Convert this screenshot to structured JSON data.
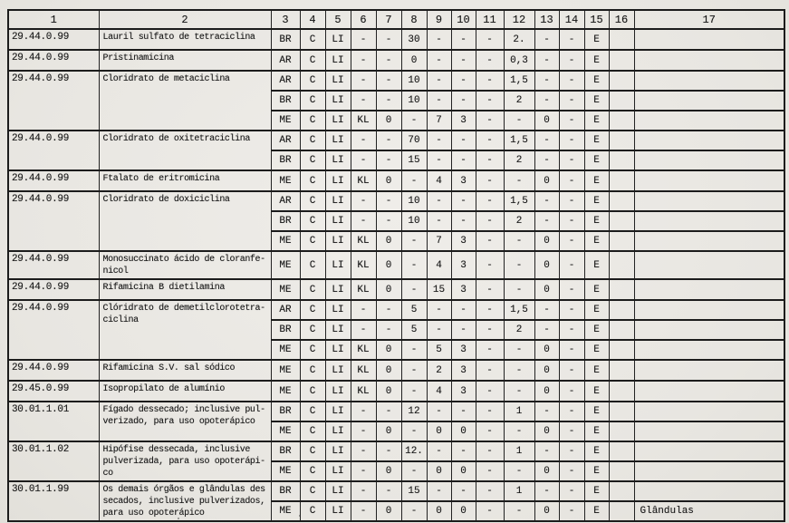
{
  "page": {
    "paper_color": "#efede9",
    "ink_color": "#1a1a1a",
    "line_color": "#1c1c1c"
  },
  "table": {
    "headers": [
      "1",
      "2",
      "3",
      "4",
      "5",
      "6",
      "7",
      "8",
      "9",
      "10",
      "11",
      "12",
      "13",
      "14",
      "15",
      "16",
      "17"
    ],
    "groups": [
      {
        "code": "29.44.0.99",
        "description": "Lauril sulfato de tetraciclina",
        "rows": [
          [
            "BR",
            "C",
            "LI",
            "-",
            "-",
            "30",
            "-",
            "-",
            "-",
            "2.",
            "-",
            "-",
            "E",
            "",
            ""
          ]
        ]
      },
      {
        "code": "29.44.0.99",
        "description": "Pristinamicina",
        "rows": [
          [
            "AR",
            "C",
            "LI",
            "-",
            "-",
            "0",
            "-",
            "-",
            "-",
            "0,3",
            "-",
            "-",
            "E",
            "",
            ""
          ]
        ]
      },
      {
        "code": "29.44.0.99",
        "description": "Cloridrato de metaciclina",
        "rows": [
          [
            "AR",
            "C",
            "LI",
            "-",
            "-",
            "10",
            "-",
            "-",
            "-",
            "1,5",
            "-",
            "-",
            "E",
            "",
            ""
          ],
          [
            "BR",
            "C",
            "LI",
            "-",
            "-",
            "10",
            "-",
            "-",
            "-",
            "2",
            "-",
            "-",
            "E",
            "",
            ""
          ],
          [
            "ME",
            "C",
            "LI",
            "KL",
            "0",
            "-",
            "7",
            "3",
            "-",
            "-",
            "0",
            "-",
            "E",
            "",
            ""
          ]
        ]
      },
      {
        "code": "29.44.0.99",
        "description": "Cloridrato de oxitetraciclina",
        "rows": [
          [
            "AR",
            "C",
            "LI",
            "-",
            "-",
            "70",
            "-",
            "-",
            "-",
            "1,5",
            "-",
            "-",
            "E",
            "",
            ""
          ],
          [
            "BR",
            "C",
            "LI",
            "-",
            "-",
            "15",
            "-",
            "-",
            "-",
            "2",
            "-",
            "-",
            "E",
            "",
            ""
          ]
        ]
      },
      {
        "code": "29.44.0.99",
        "description": "Ftalato de eritromicina",
        "rows": [
          [
            "ME",
            "C",
            "LI",
            "KL",
            "0",
            "-",
            "4",
            "3",
            "-",
            "-",
            "0",
            "-",
            "E",
            "",
            ""
          ]
        ]
      },
      {
        "code": "29.44.0.99",
        "description": "Cloridrato de doxiciclina",
        "rows": [
          [
            "AR",
            "C",
            "LI",
            "-",
            "-",
            "10",
            "-",
            "-",
            "-",
            "1,5",
            "-",
            "-",
            "E",
            "",
            ""
          ],
          [
            "BR",
            "C",
            "LI",
            "-",
            "-",
            "10",
            "-",
            "-",
            "-",
            "2",
            "-",
            "-",
            "E",
            "",
            ""
          ],
          [
            "ME",
            "C",
            "LI",
            "KL",
            "0",
            "-",
            "7",
            "3",
            "-",
            "-",
            "0",
            "-",
            "E",
            "",
            ""
          ]
        ]
      },
      {
        "code": "29.44.0.99",
        "description": "Monosuccinato ácido de cloranfe-\nnicol",
        "rows": [
          [
            "ME",
            "C",
            "LI",
            "KL",
            "0",
            "-",
            "4",
            "3",
            "-",
            "-",
            "0",
            "-",
            "E",
            "",
            ""
          ]
        ]
      },
      {
        "code": "29.44.0.99",
        "description": "Rifamicina B dietilamina",
        "rows": [
          [
            "ME",
            "C",
            "LI",
            "KL",
            "0",
            "-",
            "15",
            "3",
            "-",
            "-",
            "0",
            "-",
            "E",
            "",
            ""
          ]
        ]
      },
      {
        "code": "29.44.0.99",
        "description": "Clóridrato de demetilclorotetra-\nciclina",
        "rows": [
          [
            "AR",
            "C",
            "LI",
            "-",
            "-",
            "5",
            "-",
            "-",
            "-",
            "1,5",
            "-",
            "-",
            "E",
            "",
            ""
          ],
          [
            "BR",
            "C",
            "LI",
            "-",
            "-",
            "5",
            "-",
            "-",
            "-",
            "2",
            "-",
            "-",
            "E",
            "",
            ""
          ],
          [
            "ME",
            "C",
            "LI",
            "KL",
            "0",
            "-",
            "5",
            "3",
            "-",
            "-",
            "0",
            "-",
            "E",
            "",
            ""
          ]
        ]
      },
      {
        "code": "29.44.0.99",
        "description": "Rifamicina S.V. sal sódico",
        "rows": [
          [
            "ME",
            "C",
            "LI",
            "KL",
            "0",
            "-",
            "2",
            "3",
            "-",
            "-",
            "0",
            "-",
            "E",
            "",
            ""
          ]
        ]
      },
      {
        "code": "29.45.0.99",
        "description": "Isopropilato de alumínio",
        "rows": [
          [
            "ME",
            "C",
            "LI",
            "KL",
            "0",
            "-",
            "4",
            "3",
            "-",
            "-",
            "0",
            "-",
            "E",
            "",
            ""
          ]
        ]
      },
      {
        "code": "30.01.1.01",
        "description": "Fígado dessecado; inclusive pul-\nverizado, para uso opoterápico",
        "rows": [
          [
            "BR",
            "C",
            "LI",
            "-",
            "-",
            "12",
            "-",
            "-",
            "-",
            "1",
            "-",
            "-",
            "E",
            "",
            ""
          ],
          [
            "ME",
            "C",
            "LI",
            "-",
            "0",
            "-",
            "0",
            "0",
            "-",
            "-",
            "0",
            "-",
            "E",
            "",
            ""
          ]
        ]
      },
      {
        "code": "30.01.1.02",
        "description": "Hipófise dessecada, inclusive\npulverizada, para uso opoterápi-\nco",
        "rows": [
          [
            "BR",
            "C",
            "LI",
            "-",
            "-",
            "12.",
            "-",
            "-",
            "-",
            "1",
            "-",
            "-",
            "E",
            "",
            ""
          ],
          [
            "ME",
            "C",
            "LI",
            "-",
            "0",
            "-",
            "0",
            "0",
            "-",
            "-",
            "0",
            "-",
            "E",
            "",
            ""
          ]
        ]
      },
      {
        "code": "30.01.1.99",
        "description": "Os demais órgãos e glândulas des\nsecados, inclusive pulverizados,\npara uso opoterápico",
        "rows": [
          [
            "BR",
            "C",
            "LI",
            "-",
            "-",
            "15",
            "-",
            "-",
            "-",
            "1",
            "-",
            "-",
            "E",
            "",
            ""
          ],
          [
            "ME",
            "C",
            "LI",
            "-",
            "0",
            "-",
            "0",
            "0",
            "-",
            "-",
            "0",
            "-",
            "E",
            "",
            "Glândulas"
          ]
        ]
      }
    ]
  }
}
